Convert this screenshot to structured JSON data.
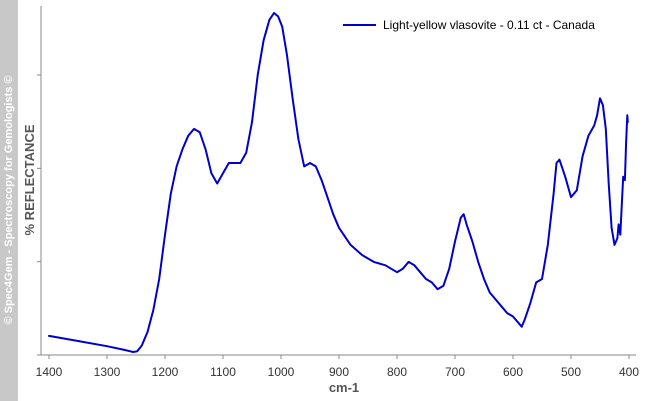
{
  "watermark": "© Spec4Gem - Spectroscopy for Gemologists ©",
  "chart_data": {
    "type": "line",
    "title": "",
    "xlabel": "cm-1",
    "ylabel": "% REFLECTANCE",
    "xlim": [
      1400,
      400
    ],
    "ylim": [
      0,
      100
    ],
    "x_reversed": true,
    "xticks": [
      1400,
      1300,
      1200,
      1100,
      1000,
      900,
      800,
      700,
      600,
      500,
      400
    ],
    "yticks_labeled": false,
    "grid": false,
    "legend_position": "top-right",
    "series": [
      {
        "name": "Light-yellow vlasovite - 0.11 ct - Canada",
        "color": "#0000cc",
        "x": [
          1400,
          1350,
          1300,
          1270,
          1255,
          1248,
          1240,
          1230,
          1220,
          1210,
          1200,
          1190,
          1180,
          1170,
          1160,
          1150,
          1140,
          1130,
          1120,
          1110,
          1100,
          1090,
          1080,
          1070,
          1060,
          1050,
          1040,
          1030,
          1020,
          1012,
          1005,
          998,
          990,
          980,
          970,
          960,
          950,
          940,
          930,
          920,
          910,
          900,
          880,
          860,
          840,
          820,
          800,
          790,
          780,
          770,
          760,
          750,
          740,
          730,
          720,
          710,
          700,
          690,
          685,
          680,
          670,
          660,
          650,
          640,
          630,
          620,
          610,
          600,
          590,
          585,
          580,
          570,
          560,
          550,
          540,
          530,
          525,
          520,
          510,
          500,
          490,
          480,
          470,
          460,
          455,
          450,
          445,
          440,
          435,
          430,
          425,
          420,
          418,
          415,
          412,
          410,
          407,
          405,
          403,
          402
        ],
        "y": [
          5.3,
          3.8,
          2.3,
          1.2,
          0.6,
          0.8,
          2.5,
          6.5,
          13,
          22,
          35,
          47,
          55,
          60,
          64,
          66,
          65,
          60,
          53,
          50,
          53,
          56,
          56,
          56,
          59,
          68,
          82,
          92,
          98,
          100,
          99,
          96,
          88,
          75,
          63,
          55,
          56,
          55,
          51,
          46,
          41,
          37,
          32,
          29,
          27,
          26,
          24,
          25,
          27,
          26,
          24,
          22,
          21,
          19,
          20,
          25,
          33,
          40,
          41,
          38,
          33,
          27,
          22,
          18,
          16,
          14,
          12,
          11,
          9,
          8,
          10,
          15,
          21,
          22,
          32,
          47,
          56,
          57,
          52,
          46,
          48,
          58,
          64,
          67,
          70,
          75,
          73,
          66,
          50,
          37,
          32,
          34,
          38,
          35,
          45,
          52,
          51,
          62,
          70,
          68
        ]
      }
    ]
  }
}
